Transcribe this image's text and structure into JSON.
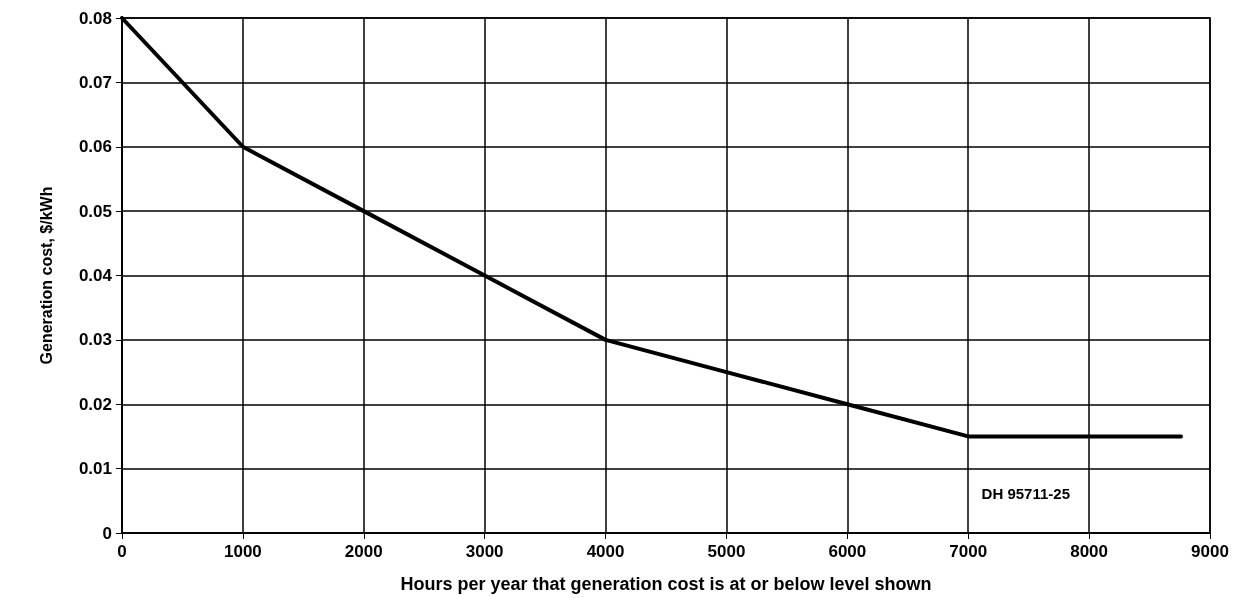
{
  "chart_data": {
    "type": "line",
    "xlabel": "Hours per year that generation cost is at or below level shown",
    "ylabel": "Generation cost, $/kWh",
    "x": [
      0,
      1000,
      2000,
      3000,
      4000,
      5000,
      6000,
      7000,
      8000,
      8760
    ],
    "series": [
      {
        "color": "#000000",
        "values": [
          0.08,
          0.06,
          0.05,
          0.04,
          0.03,
          0.025,
          0.02,
          0.015,
          0.015,
          0.015
        ]
      }
    ],
    "xlim": [
      0,
      9000
    ],
    "xticks": [
      0,
      1000,
      2000,
      3000,
      4000,
      5000,
      6000,
      7000,
      8000,
      9000
    ],
    "ylim": [
      0,
      0.08
    ],
    "yticks": [
      0,
      0.01,
      0.02,
      0.03,
      0.04,
      0.05,
      0.06,
      0.07,
      0.08
    ],
    "grid": true,
    "marker": "none",
    "line_style": "solid",
    "annotations": [
      "DH 95711-25"
    ]
  }
}
